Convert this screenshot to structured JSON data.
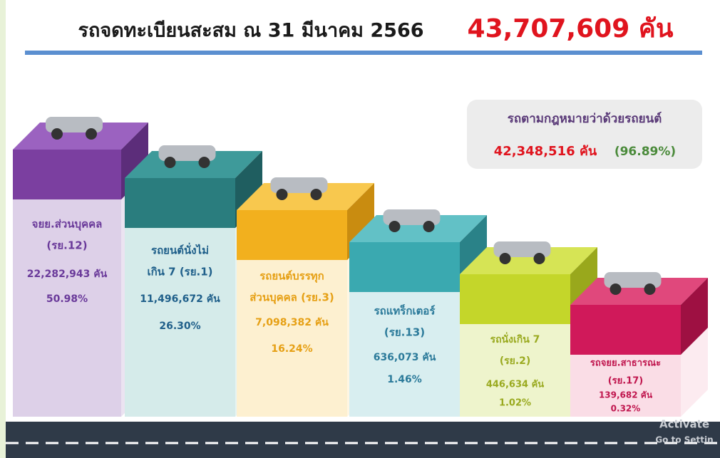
{
  "header": {
    "title": "รถจดทะเบียนสะสม ณ 31 มีนาคม 2566",
    "total": "43,707,609 คัน"
  },
  "summary": {
    "label": "รถตามกฎหมายว่าด้วยรถยนต์",
    "count": "42,348,516 คัน",
    "percent": "(96.89%)"
  },
  "categories": [
    {
      "name_lines": [
        "จยย.ส่วนบุคคล",
        "(รย.12)"
      ],
      "count": "22,282,943 คัน",
      "percent": "50.98%"
    },
    {
      "name_lines": [
        "รถยนต์นั่งไม่",
        "เกิน 7 (รย.1)"
      ],
      "count": "11,496,672 คัน",
      "percent": "26.30%"
    },
    {
      "name_lines": [
        "รถยนต์บรรทุก",
        "ส่วนบุคคล (รย.3)"
      ],
      "count": "7,098,382 คัน",
      "percent": "16.24%"
    },
    {
      "name_lines": [
        "รถแทร็กเตอร์",
        "(รย.13)"
      ],
      "count": "636,073 คัน",
      "percent": "1.46%"
    },
    {
      "name_lines": [
        "รถนั่งเกิน 7",
        "(รย.2)"
      ],
      "count": "446,634 คัน",
      "percent": "1.02%"
    },
    {
      "name_lines": [
        "รถจยย.สาธารณะ",
        "(รย.17)"
      ],
      "count": "139,682 คัน",
      "percent": "0.32%"
    }
  ],
  "watermark": [
    "Activate",
    "Go to Settin"
  ]
}
